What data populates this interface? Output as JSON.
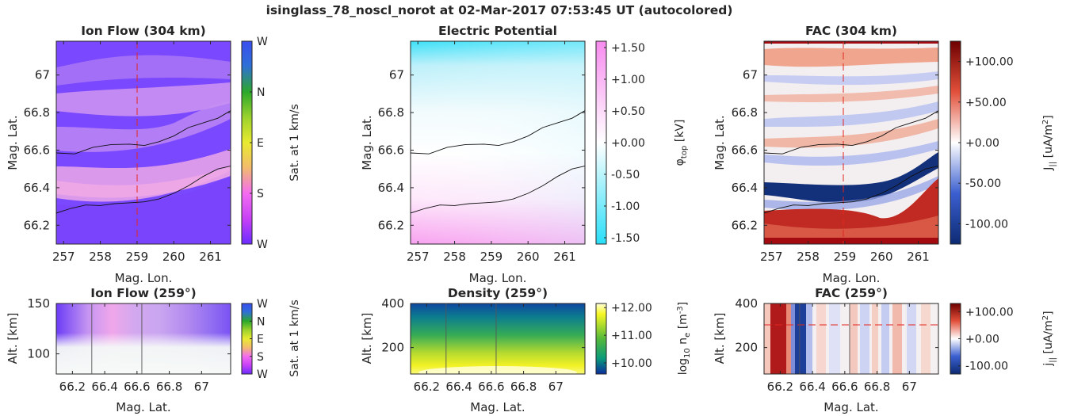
{
  "figure": {
    "suptitle": "isinglass_78_noscl_norot at 02-Mar-2017 07:53:45 UT (autocolored)"
  },
  "colors": {
    "ion_flow_cmap": [
      "#6a2cff",
      "#4a52e8",
      "#2ba82b",
      "#e9ea30",
      "#ee8fe8",
      "#f33cf3",
      "#6a2cff"
    ],
    "potential_cmap": [
      "#2ee0f8",
      "#ffffff",
      "#f894f0"
    ],
    "fac_cmap": [
      "#0c2a72",
      "#3b5fd0",
      "#ffffff",
      "#e2503a",
      "#6e0000"
    ],
    "density_cmap": [
      "#0b2d9c",
      "#0a9a7a",
      "#55b93a",
      "#f7f724",
      "#ffffd8"
    ],
    "contour": "#111111",
    "guide_line": "#e2261f",
    "axis": "#262626"
  },
  "chart_data": [
    {
      "id": "ion-flow-304",
      "type": "heatmap",
      "title": "Ion Flow (304 km)",
      "xlabel": "Mag. Lon.",
      "ylabel": "Mag. Lat.",
      "xlim": [
        256.8,
        261.55
      ],
      "ylim": [
        66.1,
        67.18
      ],
      "xticks": [
        "257",
        "258",
        "259",
        "260",
        "261"
      ],
      "yticks": [
        "66.2",
        "66.4",
        "66.6",
        "66.8",
        "67"
      ],
      "colorbar": {
        "label": "Sat. at 1 km/s",
        "ticks": [
          "W",
          "N",
          "E",
          "S",
          "W"
        ]
      },
      "guide_line": {
        "orientation": "vertical",
        "lon": 259
      },
      "contours": [
        {
          "lon": [
            256.8,
            257.3,
            257.8,
            258.3,
            258.8,
            259.2,
            259.6,
            260.0,
            260.4,
            260.8,
            261.2,
            261.55
          ],
          "lat": [
            66.585,
            66.58,
            66.615,
            66.63,
            66.632,
            66.625,
            66.645,
            66.675,
            66.72,
            66.745,
            66.77,
            66.81
          ]
        },
        {
          "lon": [
            256.8,
            257.2,
            257.6,
            258.0,
            258.4,
            258.8,
            259.2,
            259.6,
            260.0,
            260.4,
            260.8,
            261.2,
            261.55
          ],
          "lat": [
            66.265,
            66.29,
            66.308,
            66.305,
            66.315,
            66.32,
            66.325,
            66.34,
            66.37,
            66.41,
            66.46,
            66.5,
            66.515
          ]
        }
      ]
    },
    {
      "id": "electric-potential",
      "type": "heatmap",
      "title": "Electric Potential",
      "xlabel": "Mag. Lon.",
      "ylabel": "Mag. Lat.",
      "xlim": [
        256.8,
        261.55
      ],
      "ylim": [
        66.1,
        67.18
      ],
      "xticks": [
        "257",
        "258",
        "259",
        "260",
        "261"
      ],
      "yticks": [
        "66.2",
        "66.4",
        "66.6",
        "66.8",
        "67"
      ],
      "colorbar": {
        "label": "φ_top [kV]",
        "ticks": [
          "+1.50",
          "+1.00",
          "+0.50",
          "+0.00",
          "-0.50",
          "-1.00",
          "-1.50"
        ],
        "range": [
          -1.6,
          1.6
        ]
      },
      "contours": [
        {
          "lon": [
            256.8,
            257.3,
            257.8,
            258.3,
            258.8,
            259.2,
            259.6,
            260.0,
            260.4,
            260.8,
            261.2,
            261.55
          ],
          "lat": [
            66.585,
            66.58,
            66.615,
            66.63,
            66.632,
            66.625,
            66.645,
            66.675,
            66.72,
            66.745,
            66.77,
            66.81
          ]
        },
        {
          "lon": [
            256.8,
            257.2,
            257.6,
            258.0,
            258.4,
            258.8,
            259.2,
            259.6,
            260.0,
            260.4,
            260.8,
            261.2,
            261.55
          ],
          "lat": [
            66.265,
            66.29,
            66.308,
            66.305,
            66.315,
            66.32,
            66.325,
            66.34,
            66.37,
            66.41,
            66.46,
            66.5,
            66.515
          ]
        }
      ]
    },
    {
      "id": "fac-304",
      "type": "heatmap",
      "title": "FAC (304 km)",
      "xlabel": "Mag. Lon.",
      "ylabel": "Mag. Lat.",
      "xlim": [
        256.8,
        261.55
      ],
      "ylim": [
        66.1,
        67.18
      ],
      "xticks": [
        "257",
        "258",
        "259",
        "260",
        "261"
      ],
      "yticks": [
        "66.2",
        "66.4",
        "66.6",
        "66.8",
        "67"
      ],
      "colorbar": {
        "label": "J_|| [uA/m^2]",
        "ticks": [
          "+100.00",
          "+50.00",
          "+0.00",
          "-50.00",
          "-100.00"
        ],
        "range": [
          -125,
          125
        ]
      },
      "guide_line": {
        "orientation": "vertical",
        "lon": 259
      },
      "contours": [
        {
          "lon": [
            256.8,
            257.3,
            257.8,
            258.3,
            258.8,
            259.2,
            259.6,
            260.0,
            260.4,
            260.8,
            261.2,
            261.55
          ],
          "lat": [
            66.585,
            66.58,
            66.615,
            66.63,
            66.632,
            66.625,
            66.645,
            66.675,
            66.72,
            66.745,
            66.77,
            66.81
          ]
        },
        {
          "lon": [
            256.8,
            257.2,
            257.6,
            258.0,
            258.4,
            258.8,
            259.2,
            259.6,
            260.0,
            260.4,
            260.8,
            261.2,
            261.55
          ],
          "lat": [
            66.265,
            66.29,
            66.308,
            66.305,
            66.315,
            66.32,
            66.325,
            66.34,
            66.37,
            66.41,
            66.46,
            66.5,
            66.515
          ]
        }
      ]
    },
    {
      "id": "ion-flow-259",
      "type": "heatmap",
      "title": "Ion Flow (259°)",
      "xlabel": "Mag. Lat.",
      "ylabel": "Alt. [km]",
      "xlim": [
        66.1,
        67.18
      ],
      "ylim": [
        80,
        150
      ],
      "xticks": [
        "66.2",
        "66.4",
        "66.6",
        "66.8",
        "67"
      ],
      "yticks": [
        "100",
        "150"
      ],
      "colorbar": {
        "label": "Sat. at 1 km/s",
        "ticks": [
          "W",
          "N",
          "E",
          "S",
          "W"
        ]
      },
      "vlines": [
        66.32,
        66.63
      ]
    },
    {
      "id": "density-259",
      "type": "heatmap",
      "title": "Density (259°)",
      "xlabel": "Mag. Lat.",
      "ylabel": "Alt. [km]",
      "xlim": [
        66.1,
        67.18
      ],
      "ylim": [
        80,
        400
      ],
      "xticks": [
        "66.2",
        "66.4",
        "66.6",
        "66.8",
        "67"
      ],
      "yticks": [
        "200",
        "400"
      ],
      "colorbar": {
        "label": "log10 n_e [m^-3]",
        "ticks": [
          "+12.00",
          "+11.00",
          "+10.00"
        ],
        "range": [
          9.6,
          12.15
        ]
      },
      "vlines": [
        66.32,
        66.63
      ]
    },
    {
      "id": "fac-259",
      "type": "heatmap",
      "title": "FAC (259°)",
      "xlabel": "Mag. Lat.",
      "ylabel": "Alt. [km]",
      "xlim": [
        66.1,
        67.18
      ],
      "ylim": [
        80,
        400
      ],
      "xticks": [
        "66.2",
        "66.4",
        "66.6",
        "66.8",
        "67"
      ],
      "yticks": [
        "200",
        "400"
      ],
      "colorbar": {
        "label": "j_|| [uA/m^2]",
        "ticks": [
          "+100.00",
          "+0.00",
          "-100.00"
        ],
        "range": [
          -130,
          130
        ]
      },
      "guide_line": {
        "orientation": "horizontal",
        "alt": 304
      },
      "vlines": [
        66.32,
        66.63
      ]
    }
  ]
}
